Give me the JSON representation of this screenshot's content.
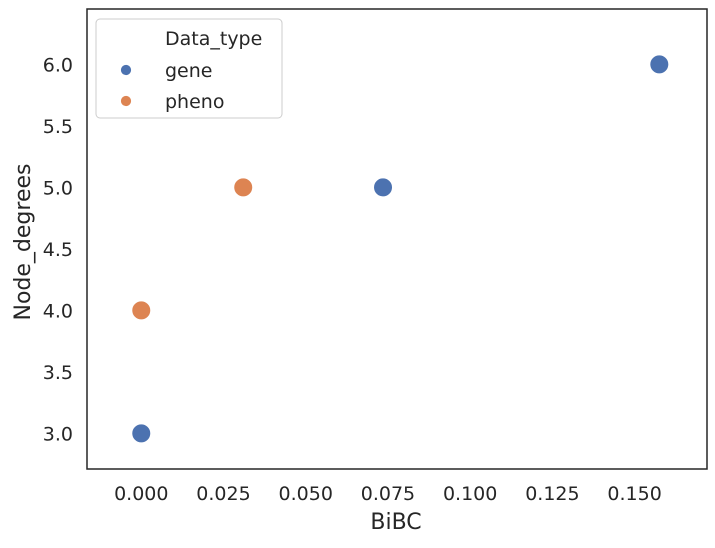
{
  "chart_data": {
    "type": "scatter",
    "title": "",
    "xlabel": "BiBC",
    "ylabel": "Node_degrees",
    "xlim": [
      -0.0165,
      0.172
    ],
    "ylim": [
      2.71,
      6.45
    ],
    "xticks": [
      0.0,
      0.025,
      0.05,
      0.075,
      0.1,
      0.125,
      0.15
    ],
    "xtick_labels": [
      "0.000",
      "0.025",
      "0.050",
      "0.075",
      "0.100",
      "0.125",
      "0.150"
    ],
    "yticks": [
      3.0,
      3.5,
      4.0,
      4.5,
      5.0,
      5.5,
      6.0
    ],
    "ytick_labels": [
      "3.0",
      "3.5",
      "4.0",
      "4.5",
      "5.0",
      "5.5",
      "6.0"
    ],
    "grid": false,
    "legend": {
      "title": "Data_type",
      "position": "top-left"
    },
    "series": [
      {
        "name": "gene",
        "color": "#4c72b0",
        "points": [
          {
            "x": 0.0,
            "y": 3.0
          },
          {
            "x": 0.0735,
            "y": 5.0
          },
          {
            "x": 0.1575,
            "y": 6.0
          }
        ]
      },
      {
        "name": "pheno",
        "color": "#dd8452",
        "points": [
          {
            "x": 0.0,
            "y": 4.0
          },
          {
            "x": 0.031,
            "y": 5.0
          }
        ]
      }
    ]
  }
}
